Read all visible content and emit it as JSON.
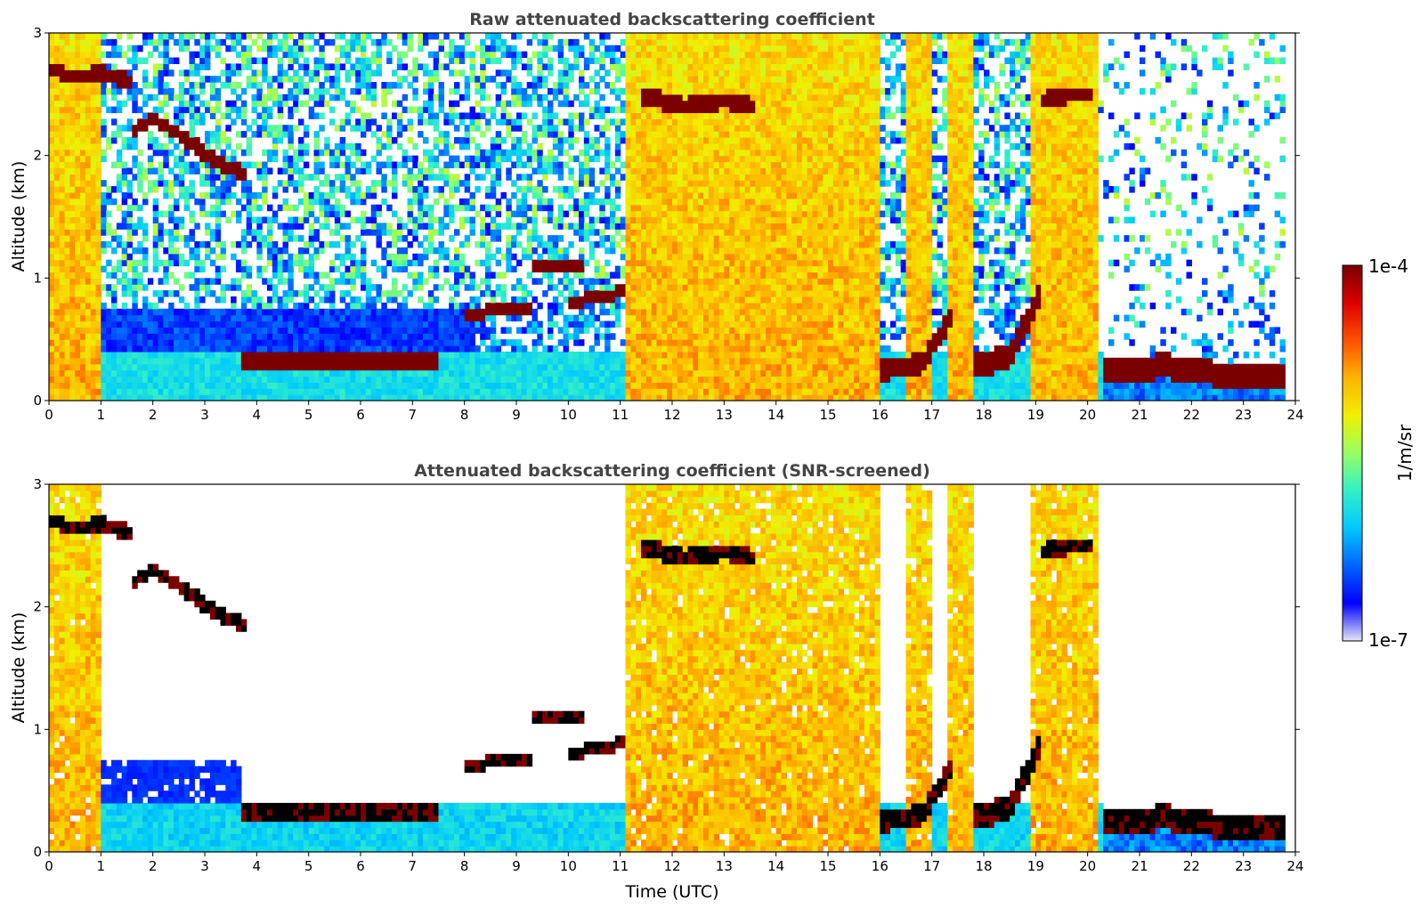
{
  "figure": {
    "colormap": [
      "#e6e6f5",
      "#0000ff",
      "#0064ff",
      "#00c8ff",
      "#32f0c8",
      "#96ff64",
      "#f0f000",
      "#ffb400",
      "#ff5000",
      "#dc0000",
      "#7a0000"
    ],
    "screened_marker_color": "#000000"
  },
  "colorbar": {
    "label": "1/m/sr",
    "max_label": "1e-4",
    "min_label": "1e-7",
    "scale": "log",
    "range": [
      1e-07,
      0.0001
    ]
  },
  "chart_data": [
    {
      "type": "heatmap",
      "title": "Raw attenuated backscattering coefficient",
      "xlabel": "",
      "ylabel": "Altitude (km)",
      "xlim": [
        0,
        24
      ],
      "ylim": [
        0,
        3
      ],
      "xticks": [
        "0",
        "1",
        "2",
        "3",
        "4",
        "5",
        "6",
        "7",
        "8",
        "9",
        "10",
        "11",
        "12",
        "13",
        "14",
        "15",
        "16",
        "17",
        "18",
        "19",
        "20",
        "21",
        "22",
        "23",
        "24"
      ],
      "yticks": [
        "0",
        "1",
        "2",
        "3"
      ],
      "grid": false,
      "screened": false,
      "layers": [
        {
          "kind": "cloud",
          "t": [
            0.0,
            0.5,
            1.0,
            1.6
          ],
          "z": [
            2.7,
            2.65,
            2.68,
            2.6
          ],
          "thickness": 0.12
        },
        {
          "kind": "cloud",
          "t": [
            1.6,
            2.0,
            2.6,
            3.2,
            3.8
          ],
          "z": [
            2.2,
            2.3,
            2.15,
            1.95,
            1.85
          ],
          "thickness": 0.12
        },
        {
          "kind": "cloud",
          "t": [
            3.7,
            5.0,
            6.5,
            7.5
          ],
          "z": [
            0.33,
            0.31,
            0.3,
            0.33
          ],
          "thickness": 0.15
        },
        {
          "kind": "cloud",
          "t": [
            8.0,
            8.8,
            9.3
          ],
          "z": [
            0.72,
            0.73,
            0.74
          ],
          "thickness": 0.1
        },
        {
          "kind": "cloud",
          "t": [
            9.3,
            9.8,
            10.3
          ],
          "z": [
            1.1,
            1.1,
            1.1
          ],
          "thickness": 0.1
        },
        {
          "kind": "cloud",
          "t": [
            10.0,
            10.6,
            11.1
          ],
          "z": [
            0.8,
            0.85,
            0.9
          ],
          "thickness": 0.1
        },
        {
          "kind": "cloud",
          "t": [
            11.4,
            12.2,
            13.0,
            13.6
          ],
          "z": [
            2.5,
            2.4,
            2.45,
            2.4
          ],
          "thickness": 0.14
        },
        {
          "kind": "cloud",
          "t": [
            16.0,
            16.8,
            17.4
          ],
          "z": [
            0.25,
            0.3,
            0.7
          ],
          "thickness": 0.18
        },
        {
          "kind": "cloud",
          "t": [
            17.8,
            18.5,
            19.1
          ],
          "z": [
            0.3,
            0.35,
            0.9
          ],
          "thickness": 0.2
        },
        {
          "kind": "cloud",
          "t": [
            19.1,
            19.7,
            20.1
          ],
          "z": [
            2.45,
            2.5,
            2.5
          ],
          "thickness": 0.14
        },
        {
          "kind": "cloud",
          "t": [
            20.3,
            21.5,
            22.5,
            23.8
          ],
          "z": [
            0.25,
            0.28,
            0.22,
            0.22
          ],
          "thickness": 0.2
        }
      ],
      "rain_columns": [
        {
          "t": [
            0.0,
            1.0
          ],
          "top": 3.0
        },
        {
          "t": [
            11.1,
            16.0
          ],
          "top": 3.0
        },
        {
          "t": [
            16.5,
            17.0
          ],
          "top": 3.0
        },
        {
          "t": [
            17.3,
            17.8
          ],
          "top": 3.0
        },
        {
          "t": [
            18.9,
            20.2
          ],
          "top": 3.0
        }
      ]
    },
    {
      "type": "heatmap",
      "title": "Attenuated backscattering coefficient (SNR-screened)",
      "xlabel": "Time (UTC)",
      "ylabel": "Altitude (km)",
      "xlim": [
        0,
        24
      ],
      "ylim": [
        0,
        3
      ],
      "xticks": [
        "0",
        "1",
        "2",
        "3",
        "4",
        "5",
        "6",
        "7",
        "8",
        "9",
        "10",
        "11",
        "12",
        "13",
        "14",
        "15",
        "16",
        "17",
        "18",
        "19",
        "20",
        "21",
        "22",
        "23",
        "24"
      ],
      "yticks": [
        "0",
        "1",
        "2",
        "3"
      ],
      "grid": false,
      "screened": true
    }
  ]
}
